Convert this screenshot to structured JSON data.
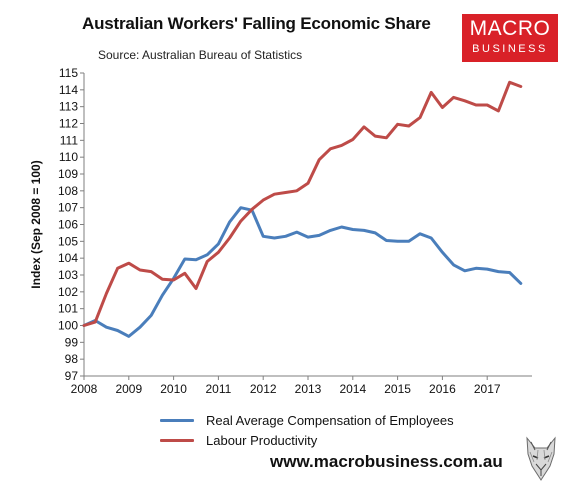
{
  "header": {
    "title": "Australian Workers' Falling Economic Share",
    "subtitle": "Source: Australian Bureau of Statistics"
  },
  "logo": {
    "line1": "MACRO",
    "line2": "BUSINESS",
    "color": "#d92128"
  },
  "footer": {
    "website": "www.macrobusiness.com.au",
    "icon": "wolf-icon"
  },
  "chart_data": {
    "type": "line",
    "title": "Australian Workers' Falling Economic Share",
    "subtitle": "Source: Australian Bureau of Statistics",
    "xlabel": "",
    "ylabel": "Index (Sep 2008 = 100)",
    "xlim": [
      2008,
      2018
    ],
    "ylim": [
      97,
      115
    ],
    "x_ticks": [
      2008,
      2009,
      2010,
      2011,
      2012,
      2013,
      2014,
      2015,
      2016,
      2017
    ],
    "y_ticks": [
      97,
      98,
      99,
      100,
      101,
      102,
      103,
      104,
      105,
      106,
      107,
      108,
      109,
      110,
      111,
      112,
      113,
      114,
      115
    ],
    "grid": false,
    "legend": "bottom",
    "x": [
      2008.0,
      2008.25,
      2008.5,
      2008.75,
      2009.0,
      2009.25,
      2009.5,
      2009.75,
      2010.0,
      2010.25,
      2010.5,
      2010.75,
      2011.0,
      2011.25,
      2011.5,
      2011.75,
      2012.0,
      2012.25,
      2012.5,
      2012.75,
      2013.0,
      2013.25,
      2013.5,
      2013.75,
      2014.0,
      2014.25,
      2014.5,
      2014.75,
      2015.0,
      2015.25,
      2015.5,
      2015.75,
      2016.0,
      2016.25,
      2016.5,
      2016.75,
      2017.0,
      2017.25,
      2017.5,
      2017.75
    ],
    "series": [
      {
        "name": "Real Average Compensation of Employees",
        "color": "#4a7ebb",
        "values": [
          100.0,
          100.3,
          99.9,
          99.7,
          99.35,
          99.9,
          100.6,
          101.8,
          102.8,
          103.95,
          103.9,
          104.2,
          104.85,
          106.15,
          107.0,
          106.85,
          105.3,
          105.2,
          105.3,
          105.55,
          105.25,
          105.35,
          105.65,
          105.85,
          105.7,
          105.65,
          105.5,
          105.05,
          105.0,
          105.0,
          105.45,
          105.2,
          104.35,
          103.6,
          103.25,
          103.4,
          103.35,
          103.2,
          103.15,
          102.5
        ]
      },
      {
        "name": "Labour Productivity",
        "color": "#be4b48",
        "values": [
          100.0,
          100.2,
          101.9,
          103.4,
          103.7,
          103.3,
          103.2,
          102.75,
          102.7,
          103.1,
          102.2,
          103.8,
          104.35,
          105.2,
          106.2,
          106.9,
          107.45,
          107.8,
          107.9,
          108.0,
          108.45,
          109.85,
          110.5,
          110.7,
          111.05,
          111.8,
          111.25,
          111.15,
          111.95,
          111.85,
          112.35,
          113.85,
          112.95,
          113.55,
          113.35,
          113.1,
          113.1,
          112.75,
          114.45,
          114.2
        ]
      }
    ]
  }
}
